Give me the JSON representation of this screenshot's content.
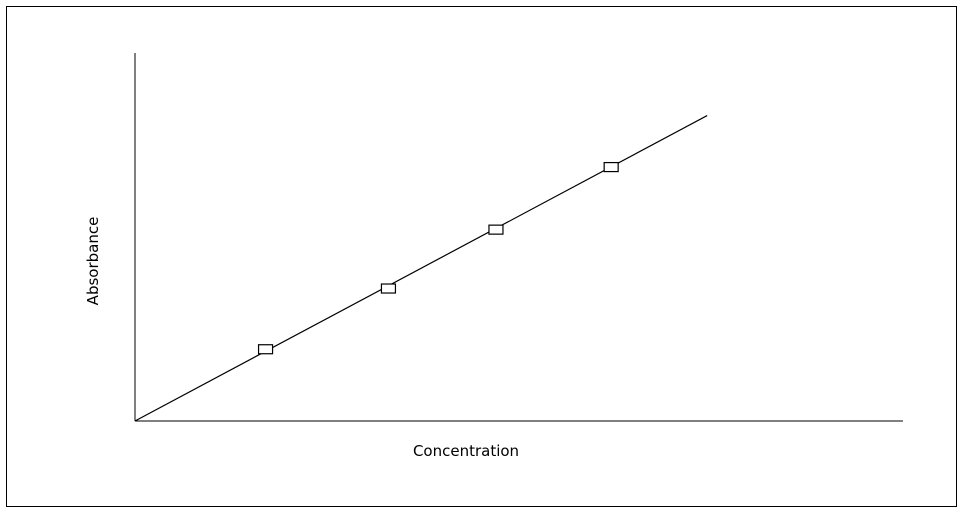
{
  "chart_data": {
    "type": "scatter",
    "title": "",
    "xlabel": "Concentration",
    "ylabel": "Absorbance",
    "xlim": [
      0,
      1
    ],
    "ylim": [
      0,
      1
    ],
    "grid": false,
    "legend": "none",
    "series": [
      {
        "marker": "open-square",
        "points": [
          {
            "x": 0.17,
            "y": 0.195
          },
          {
            "x": 0.33,
            "y": 0.36
          },
          {
            "x": 0.47,
            "y": 0.52
          },
          {
            "x": 0.62,
            "y": 0.69
          }
        ]
      }
    ],
    "trendline": {
      "type": "linear",
      "x": [
        0,
        0.745
      ],
      "y": [
        0,
        0.83
      ]
    },
    "colors": {
      "line": "#000000",
      "marker_stroke": "#000000",
      "marker_fill": "#ffffff"
    }
  }
}
